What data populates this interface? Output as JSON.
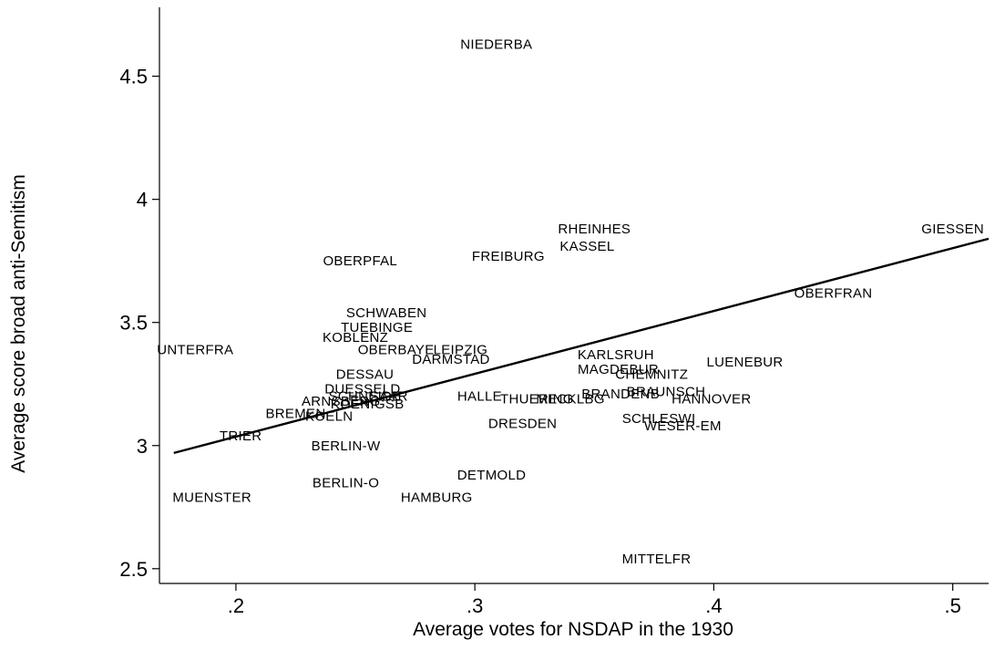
{
  "chart_data": {
    "type": "scatter",
    "title": "",
    "xlabel": "Average votes for NSDAP in the 1930",
    "ylabel": "Average score broad anti-Semitism",
    "xlim": [
      0.168,
      0.515
    ],
    "ylim": [
      2.44,
      4.78
    ],
    "x_ticks": [
      0.2,
      0.3,
      0.4,
      0.5
    ],
    "x_tick_labels": [
      ".2",
      ".3",
      ".4",
      ".5"
    ],
    "y_ticks": [
      2.5,
      3,
      3.5,
      4,
      4.5
    ],
    "y_tick_labels": [
      "2.5",
      "3",
      "3.5",
      "4",
      "4.5"
    ],
    "grid": false,
    "legend": "none",
    "fit_line": {
      "x": [
        0.174,
        0.515
      ],
      "y": [
        2.97,
        3.84
      ]
    },
    "points": [
      {
        "label": "NIEDERBA",
        "x": 0.309,
        "y": 4.63
      },
      {
        "label": "RHEINHES",
        "x": 0.35,
        "y": 3.88
      },
      {
        "label": "GIESSEN",
        "x": 0.5,
        "y": 3.88
      },
      {
        "label": "KASSEL",
        "x": 0.347,
        "y": 3.81
      },
      {
        "label": "FREIBURG",
        "x": 0.314,
        "y": 3.77
      },
      {
        "label": "OBERPFAL",
        "x": 0.252,
        "y": 3.75
      },
      {
        "label": "OBERFRAN",
        "x": 0.45,
        "y": 3.62
      },
      {
        "label": "SCHWABEN",
        "x": 0.263,
        "y": 3.54
      },
      {
        "label": "TUEBINGE",
        "x": 0.259,
        "y": 3.48
      },
      {
        "label": "KOBLENZ",
        "x": 0.25,
        "y": 3.44
      },
      {
        "label": "UNTERFRA",
        "x": 0.183,
        "y": 3.39
      },
      {
        "label": "OBERBAYE",
        "x": 0.267,
        "y": 3.39
      },
      {
        "label": "LEIPZIG",
        "x": 0.294,
        "y": 3.39
      },
      {
        "label": "DARMSTAD",
        "x": 0.29,
        "y": 3.35
      },
      {
        "label": "KARLSRUH",
        "x": 0.359,
        "y": 3.37
      },
      {
        "label": "LUENEBUR",
        "x": 0.413,
        "y": 3.34
      },
      {
        "label": "MAGDEBUR",
        "x": 0.36,
        "y": 3.31
      },
      {
        "label": "DESSAU",
        "x": 0.254,
        "y": 3.29
      },
      {
        "label": "CHEMNITZ",
        "x": 0.374,
        "y": 3.29
      },
      {
        "label": "DUESSELD",
        "x": 0.253,
        "y": 3.23
      },
      {
        "label": "BRAUNSCH",
        "x": 0.38,
        "y": 3.22
      },
      {
        "label": "BRANDENB",
        "x": 0.361,
        "y": 3.21
      },
      {
        "label": "SCHNEIDE",
        "x": 0.254,
        "y": 3.2
      },
      {
        "label": "SAAR",
        "x": 0.264,
        "y": 3.2
      },
      {
        "label": "HALLE",
        "x": 0.302,
        "y": 3.2
      },
      {
        "label": "THUERING",
        "x": 0.326,
        "y": 3.19
      },
      {
        "label": "MECKLBG",
        "x": 0.34,
        "y": 3.19
      },
      {
        "label": "HANNOVER",
        "x": 0.399,
        "y": 3.19
      },
      {
        "label": "ARNSBERG",
        "x": 0.244,
        "y": 3.18
      },
      {
        "label": "KOENIGSB",
        "x": 0.255,
        "y": 3.17
      },
      {
        "label": "BREMEN",
        "x": 0.225,
        "y": 3.13
      },
      {
        "label": "KOELN",
        "x": 0.239,
        "y": 3.12
      },
      {
        "label": "SCHLESWI",
        "x": 0.377,
        "y": 3.11
      },
      {
        "label": "DRESDEN",
        "x": 0.32,
        "y": 3.09
      },
      {
        "label": "WESER-EM",
        "x": 0.387,
        "y": 3.08
      },
      {
        "label": "TRIER",
        "x": 0.202,
        "y": 3.04
      },
      {
        "label": "BERLIN-W",
        "x": 0.246,
        "y": 3.0
      },
      {
        "label": "DETMOLD",
        "x": 0.307,
        "y": 2.88
      },
      {
        "label": "BERLIN-O",
        "x": 0.246,
        "y": 2.85
      },
      {
        "label": "MUENSTER",
        "x": 0.19,
        "y": 2.79
      },
      {
        "label": "HAMBURG",
        "x": 0.284,
        "y": 2.79
      },
      {
        "label": "MITTELFR",
        "x": 0.376,
        "y": 2.54
      }
    ]
  }
}
